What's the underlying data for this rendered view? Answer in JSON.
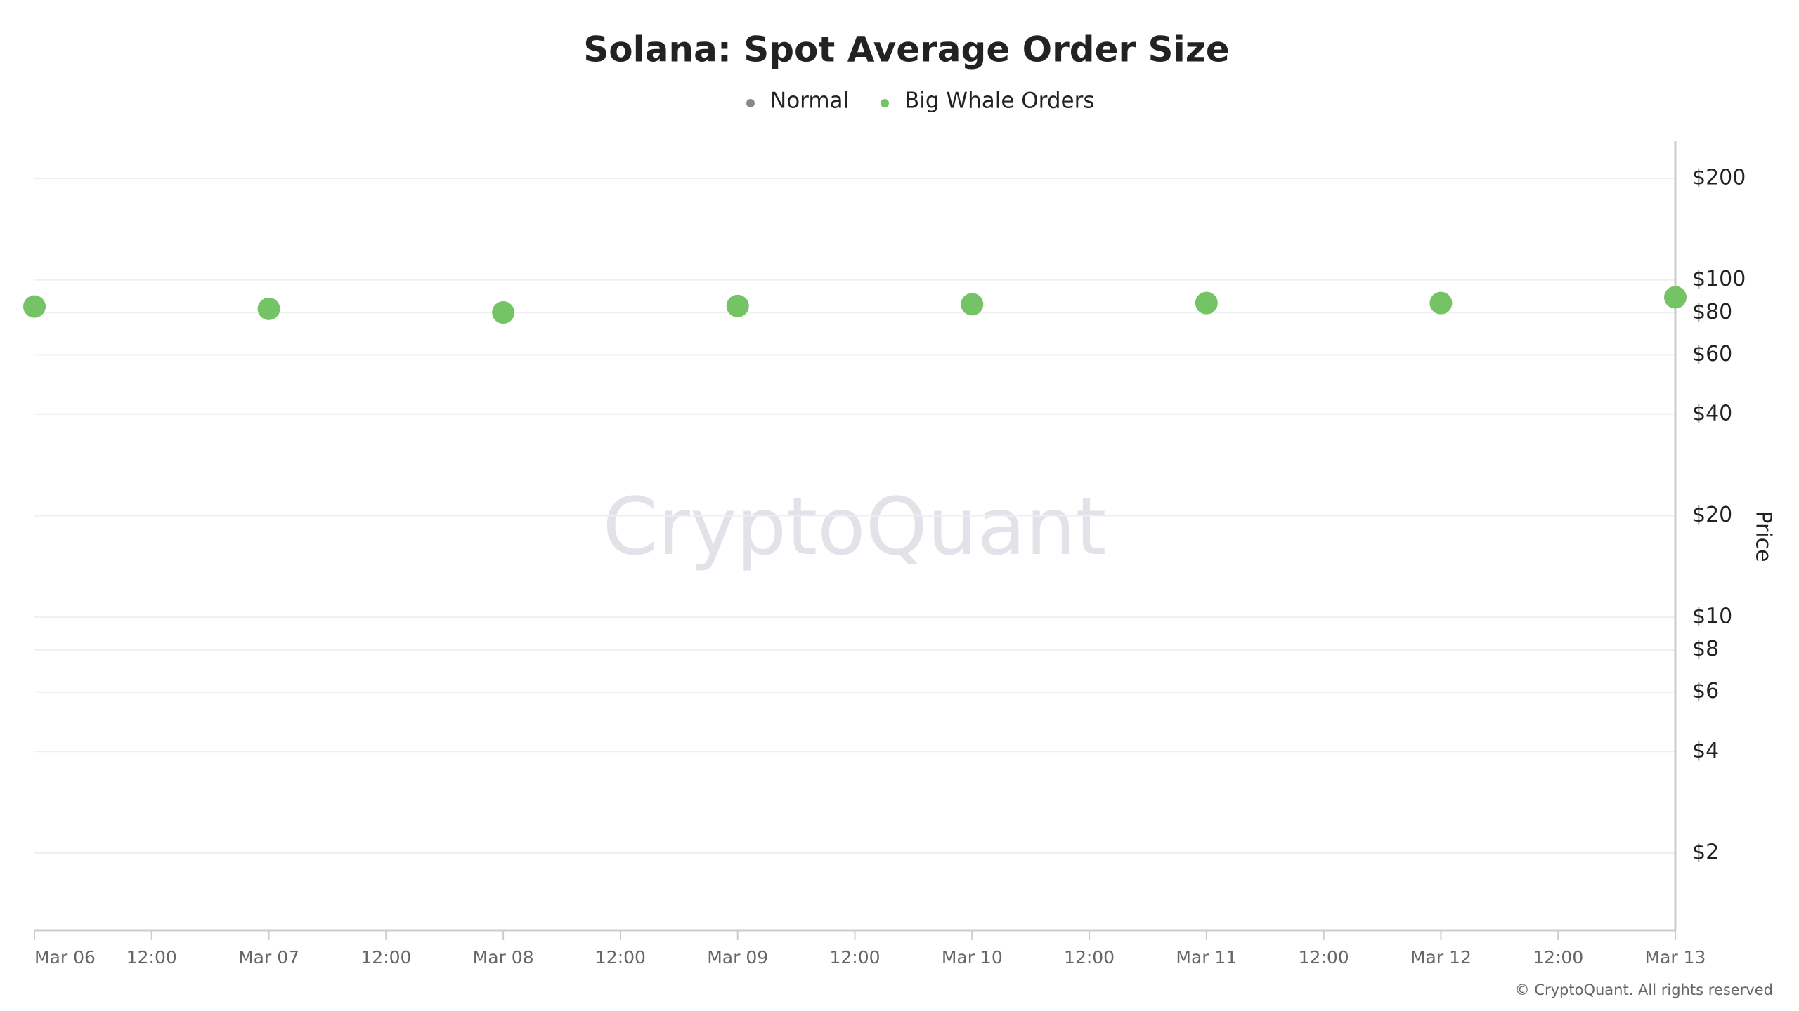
{
  "chart_data": {
    "type": "scatter",
    "title": "Solana: Spot Average Order Size",
    "x": [
      "Mar 06",
      "Mar 07",
      "Mar 08",
      "Mar 09",
      "Mar 10",
      "Mar 11",
      "Mar 12",
      "Mar 13"
    ],
    "xticks": [
      "Mar 06",
      "12:00",
      "Mar 07",
      "12:00",
      "Mar 08",
      "12:00",
      "Mar 09",
      "12:00",
      "Mar 10",
      "12:00",
      "Mar 11",
      "12:00",
      "Mar 12",
      "12:00",
      "Mar 13"
    ],
    "series": [
      {
        "name": "Normal",
        "color": "#888888",
        "values": [
          null,
          null,
          null,
          null,
          null,
          null,
          null,
          null
        ]
      },
      {
        "name": "Big Whale Orders",
        "color": "#74c365",
        "values": [
          83.4,
          82.1,
          80.1,
          83.7,
          84.7,
          85.4,
          85.4,
          88.8
        ]
      }
    ],
    "y_label": "Price",
    "log_scale": true,
    "grid": true,
    "legend": "top",
    "ylim": [
      1.18,
      258
    ],
    "yticks": [
      {
        "value": 2,
        "label": "$2"
      },
      {
        "value": 4,
        "label": "$4"
      },
      {
        "value": 6,
        "label": "$6"
      },
      {
        "value": 8,
        "label": "$8"
      },
      {
        "value": 10,
        "label": "$10"
      },
      {
        "value": 20,
        "label": "$20"
      },
      {
        "value": 40,
        "label": "$40"
      },
      {
        "value": 60,
        "label": "$60"
      },
      {
        "value": 80,
        "label": "$80"
      },
      {
        "value": 100,
        "label": "$100"
      },
      {
        "value": 200,
        "label": "$200"
      }
    ],
    "watermark": "CryptoQuant",
    "copyright": "© CryptoQuant. All rights reserved"
  }
}
